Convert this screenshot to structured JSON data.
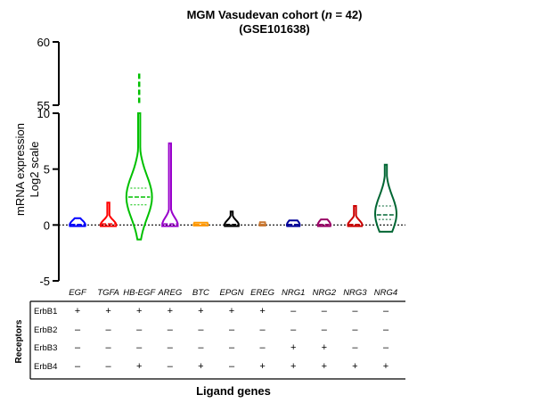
{
  "chart_data": {
    "type": "violin",
    "title": "MGM Vasudevan cohort (",
    "title_n": "n",
    "title_rest": " = 42)",
    "subtitle": "(GSE101638)",
    "ylabel_line1": "mRNA expression",
    "ylabel_line2": "Log2 scale",
    "xlabel": "Ligand genes",
    "y_lower_ticks": [
      "-5",
      "0",
      "5",
      "10"
    ],
    "y_upper_ticks": [
      "55",
      "60"
    ],
    "y_lower_range": [
      -5,
      10
    ],
    "y_upper_range": [
      55,
      60
    ],
    "y_break": [
      10,
      55
    ],
    "baseline": 0,
    "categories": [
      "EGF",
      "TGFA",
      "HB-EGF",
      "AREG",
      "BTC",
      "EPGN",
      "EREG",
      "NRG1",
      "NRG2",
      "NRG3",
      "NRG4"
    ],
    "series": [
      {
        "color": "#0000ff",
        "min": -0.1,
        "max": 0.6,
        "q1": 0,
        "median": 0.05,
        "q3": 0.1,
        "mode": 0,
        "width": 0.55
      },
      {
        "color": "#ff0000",
        "min": -0.1,
        "max": 2.0,
        "q1": 0,
        "median": 0.1,
        "q3": 0.2,
        "mode": 0,
        "width": 0.55
      },
      {
        "color": "#00c000",
        "min": -1.3,
        "max": 57.5,
        "q1": 1.8,
        "median": 2.5,
        "q3": 3.3,
        "mode": 2.5,
        "width": 0.9,
        "upper_point": 57.5
      },
      {
        "color": "#9900cc",
        "min": -0.1,
        "max": 7.3,
        "q1": 0,
        "median": 0.1,
        "q3": 0.4,
        "mode": 0,
        "width": 0.55
      },
      {
        "color": "#ff9900",
        "min": -0.05,
        "max": 0.2,
        "q1": 0,
        "median": 0.05,
        "q3": 0.1,
        "mode": 0,
        "width": 0.5
      },
      {
        "color": "#000000",
        "min": -0.1,
        "max": 1.2,
        "q1": 0,
        "median": 0.05,
        "q3": 0.1,
        "mode": 0,
        "width": 0.5
      },
      {
        "color": "#c87832",
        "min": -0.05,
        "max": 0.25,
        "q1": 0,
        "median": 0.05,
        "q3": 0.1,
        "mode": 0,
        "width": 0.2
      },
      {
        "color": "#000099",
        "min": -0.1,
        "max": 0.4,
        "q1": 0,
        "median": 0.05,
        "q3": 0.1,
        "mode": 0,
        "width": 0.45
      },
      {
        "color": "#990066",
        "min": -0.1,
        "max": 0.5,
        "q1": 0,
        "median": 0.05,
        "q3": 0.1,
        "mode": 0,
        "width": 0.45
      },
      {
        "color": "#cc0000",
        "min": -0.1,
        "max": 1.7,
        "q1": 0,
        "median": 0.05,
        "q3": 0.1,
        "mode": 0,
        "width": 0.5
      },
      {
        "color": "#006633",
        "min": -0.6,
        "max": 5.4,
        "q1": 0.5,
        "median": 0.9,
        "q3": 1.7,
        "mode": 1.0,
        "width": 0.75
      }
    ],
    "receptors_title": "Receptors",
    "receptors": [
      {
        "name": "ErbB1",
        "marks": [
          "+",
          "+",
          "+",
          "+",
          "+",
          "+",
          "+",
          "–",
          "–",
          "–",
          "–"
        ]
      },
      {
        "name": "ErbB2",
        "marks": [
          "–",
          "–",
          "–",
          "–",
          "–",
          "–",
          "–",
          "–",
          "–",
          "–",
          "–"
        ]
      },
      {
        "name": "ErbB3",
        "marks": [
          "–",
          "–",
          "–",
          "–",
          "–",
          "–",
          "–",
          "+",
          "+",
          "–",
          "–"
        ]
      },
      {
        "name": "ErbB4",
        "marks": [
          "–",
          "–",
          "+",
          "–",
          "+",
          "–",
          "+",
          "+",
          "+",
          "+",
          "+"
        ]
      }
    ]
  }
}
